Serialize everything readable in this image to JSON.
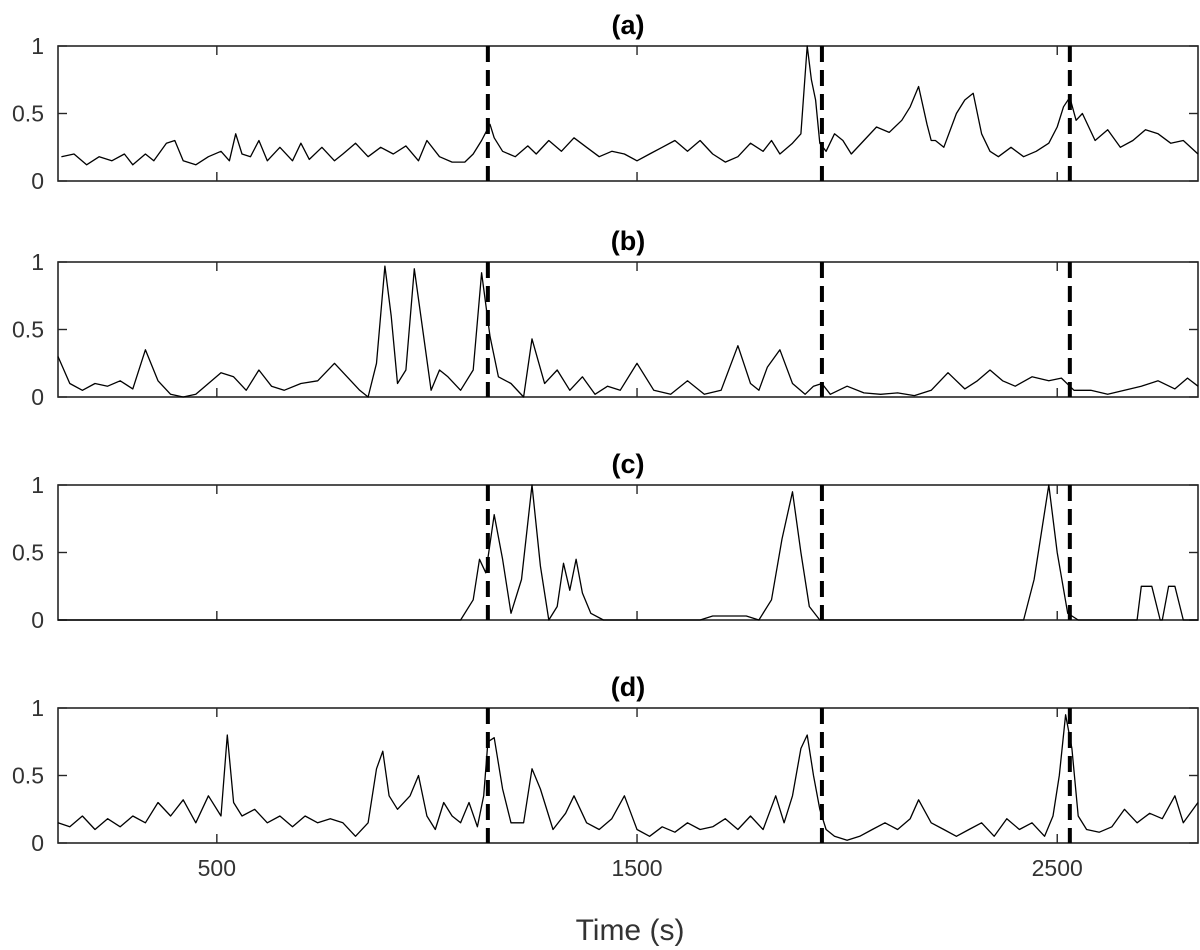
{
  "chart_data": [
    {
      "type": "line",
      "title": "(a)",
      "xlim": [
        122,
        2835
      ],
      "ylim": [
        0,
        1
      ],
      "yticks": [
        0,
        0.5,
        1
      ],
      "ytick_labels": [
        "0",
        "0.5",
        "1"
      ],
      "xticks": [
        500,
        1500,
        2500
      ],
      "xtick_labels": [],
      "xlabel": "",
      "event_lines": [
        1145,
        1940,
        2530
      ],
      "series": [
        {
          "x": [
            130,
            160,
            190,
            220,
            250,
            280,
            300,
            330,
            350,
            380,
            400,
            420,
            450,
            480,
            510,
            530,
            545,
            560,
            580,
            600,
            620,
            650,
            680,
            700,
            720,
            750,
            780,
            800,
            830,
            860,
            890,
            920,
            950,
            980,
            1000,
            1030,
            1060,
            1090,
            1110,
            1130,
            1150,
            1160,
            1180,
            1210,
            1240,
            1260,
            1290,
            1320,
            1350,
            1380,
            1410,
            1440,
            1470,
            1500,
            1530,
            1560,
            1590,
            1620,
            1650,
            1680,
            1710,
            1740,
            1770,
            1800,
            1820,
            1840,
            1870,
            1890,
            1905,
            1915,
            1925,
            1935,
            1950,
            1970,
            1990,
            2010,
            2040,
            2070,
            2100,
            2130,
            2150,
            2170,
            2190,
            2200,
            2210,
            2230,
            2260,
            2280,
            2300,
            2320,
            2340,
            2360,
            2390,
            2420,
            2450,
            2480,
            2500,
            2515,
            2530,
            2545,
            2560,
            2590,
            2620,
            2650,
            2680,
            2710,
            2740,
            2770,
            2800,
            2835
          ],
          "y": [
            0.18,
            0.2,
            0.12,
            0.18,
            0.15,
            0.2,
            0.12,
            0.2,
            0.15,
            0.28,
            0.3,
            0.15,
            0.12,
            0.18,
            0.22,
            0.15,
            0.35,
            0.2,
            0.18,
            0.3,
            0.15,
            0.25,
            0.15,
            0.28,
            0.16,
            0.25,
            0.15,
            0.2,
            0.28,
            0.18,
            0.25,
            0.2,
            0.26,
            0.15,
            0.3,
            0.18,
            0.14,
            0.14,
            0.2,
            0.3,
            0.42,
            0.32,
            0.22,
            0.18,
            0.26,
            0.2,
            0.3,
            0.22,
            0.32,
            0.25,
            0.18,
            0.22,
            0.2,
            0.15,
            0.2,
            0.25,
            0.3,
            0.22,
            0.3,
            0.2,
            0.14,
            0.18,
            0.28,
            0.22,
            0.3,
            0.2,
            0.28,
            0.35,
            1.0,
            0.75,
            0.6,
            0.28,
            0.22,
            0.35,
            0.3,
            0.2,
            0.3,
            0.4,
            0.36,
            0.45,
            0.55,
            0.7,
            0.42,
            0.3,
            0.3,
            0.25,
            0.5,
            0.6,
            0.65,
            0.35,
            0.22,
            0.18,
            0.25,
            0.18,
            0.22,
            0.28,
            0.4,
            0.55,
            0.62,
            0.45,
            0.5,
            0.3,
            0.38,
            0.25,
            0.3,
            0.38,
            0.35,
            0.28,
            0.3,
            0.2
          ]
        }
      ]
    },
    {
      "type": "line",
      "title": "(b)",
      "xlim": [
        122,
        2835
      ],
      "ylim": [
        0,
        1
      ],
      "yticks": [
        0,
        0.5,
        1
      ],
      "ytick_labels": [
        "0",
        "0.5",
        "1"
      ],
      "xticks": [
        500,
        1500,
        2500
      ],
      "xtick_labels": [],
      "xlabel": "",
      "event_lines": [
        1145,
        1940,
        2530
      ],
      "series": [
        {
          "x": [
            122,
            150,
            180,
            210,
            240,
            270,
            300,
            330,
            360,
            390,
            420,
            450,
            480,
            510,
            540,
            570,
            600,
            630,
            660,
            700,
            740,
            780,
            810,
            840,
            860,
            880,
            900,
            915,
            930,
            950,
            970,
            990,
            1010,
            1030,
            1050,
            1080,
            1110,
            1130,
            1150,
            1170,
            1200,
            1230,
            1250,
            1280,
            1310,
            1340,
            1370,
            1400,
            1430,
            1460,
            1500,
            1540,
            1580,
            1620,
            1660,
            1700,
            1740,
            1770,
            1790,
            1810,
            1840,
            1870,
            1900,
            1920,
            1940,
            1960,
            2000,
            2040,
            2080,
            2120,
            2160,
            2200,
            2240,
            2280,
            2310,
            2340,
            2370,
            2400,
            2440,
            2480,
            2510,
            2540,
            2580,
            2620,
            2660,
            2700,
            2740,
            2780,
            2810,
            2835
          ],
          "y": [
            0.3,
            0.1,
            0.05,
            0.1,
            0.08,
            0.12,
            0.06,
            0.35,
            0.12,
            0.02,
            0.0,
            0.02,
            0.1,
            0.18,
            0.15,
            0.05,
            0.2,
            0.08,
            0.05,
            0.1,
            0.12,
            0.25,
            0.15,
            0.05,
            0.0,
            0.25,
            0.97,
            0.6,
            0.1,
            0.2,
            0.95,
            0.5,
            0.05,
            0.2,
            0.15,
            0.05,
            0.2,
            0.92,
            0.45,
            0.15,
            0.1,
            0.0,
            0.43,
            0.1,
            0.2,
            0.05,
            0.15,
            0.02,
            0.08,
            0.05,
            0.25,
            0.05,
            0.02,
            0.12,
            0.02,
            0.05,
            0.38,
            0.1,
            0.05,
            0.22,
            0.35,
            0.1,
            0.02,
            0.08,
            0.1,
            0.02,
            0.08,
            0.03,
            0.02,
            0.03,
            0.01,
            0.05,
            0.18,
            0.06,
            0.12,
            0.2,
            0.12,
            0.08,
            0.15,
            0.12,
            0.14,
            0.05,
            0.05,
            0.02,
            0.05,
            0.08,
            0.12,
            0.06,
            0.14,
            0.08
          ]
        }
      ]
    },
    {
      "type": "line",
      "title": "(c)",
      "xlim": [
        122,
        2835
      ],
      "ylim": [
        0,
        1
      ],
      "yticks": [
        0,
        0.5,
        1
      ],
      "ytick_labels": [
        "0",
        "0.5",
        "1"
      ],
      "xticks": [
        500,
        1500,
        2500
      ],
      "xtick_labels": [],
      "xlabel": "",
      "event_lines": [
        1145,
        1940,
        2530
      ],
      "series": [
        {
          "x": [
            122,
            500,
            540,
            1050,
            1080,
            1110,
            1125,
            1140,
            1160,
            1180,
            1200,
            1225,
            1250,
            1270,
            1290,
            1310,
            1325,
            1340,
            1355,
            1370,
            1390,
            1420,
            1650,
            1680,
            1760,
            1790,
            1820,
            1845,
            1870,
            1890,
            1910,
            1935,
            1960,
            2390,
            2420,
            2445,
            2465,
            2480,
            2500,
            2525,
            2550,
            2670,
            2690,
            2700,
            2725,
            2745,
            2750,
            2765,
            2780,
            2800,
            2835
          ],
          "y": [
            0.0,
            0.0,
            0.0,
            0.0,
            0.0,
            0.15,
            0.45,
            0.35,
            0.78,
            0.45,
            0.05,
            0.3,
            1.0,
            0.4,
            0.0,
            0.1,
            0.42,
            0.22,
            0.45,
            0.2,
            0.05,
            0.0,
            0.0,
            0.03,
            0.03,
            0.0,
            0.15,
            0.6,
            0.95,
            0.5,
            0.1,
            0.0,
            0.0,
            0.0,
            0.0,
            0.3,
            0.7,
            1.0,
            0.5,
            0.05,
            0.0,
            0.0,
            0.0,
            0.25,
            0.25,
            0.0,
            0.0,
            0.25,
            0.25,
            0.0,
            0.0
          ]
        }
      ]
    },
    {
      "type": "line",
      "title": "(d)",
      "xlim": [
        122,
        2835
      ],
      "ylim": [
        0,
        1
      ],
      "yticks": [
        0,
        0.5,
        1
      ],
      "ytick_labels": [
        "0",
        "0.5",
        "1"
      ],
      "xticks": [
        500,
        1500,
        2500
      ],
      "xtick_labels": [
        "500",
        "1500",
        "2500"
      ],
      "xlabel": "Time (s)",
      "event_lines": [
        1145,
        1940,
        2530
      ],
      "series": [
        {
          "x": [
            122,
            150,
            180,
            210,
            240,
            270,
            300,
            330,
            360,
            390,
            420,
            450,
            480,
            510,
            525,
            540,
            560,
            590,
            620,
            650,
            680,
            710,
            740,
            770,
            800,
            830,
            860,
            880,
            895,
            910,
            930,
            960,
            980,
            1000,
            1020,
            1040,
            1060,
            1080,
            1100,
            1120,
            1135,
            1145,
            1160,
            1180,
            1200,
            1230,
            1250,
            1270,
            1300,
            1330,
            1350,
            1380,
            1410,
            1440,
            1470,
            1500,
            1530,
            1560,
            1590,
            1620,
            1650,
            1680,
            1710,
            1740,
            1770,
            1800,
            1830,
            1850,
            1870,
            1890,
            1905,
            1920,
            1935,
            1950,
            1970,
            2000,
            2030,
            2060,
            2090,
            2120,
            2150,
            2170,
            2200,
            2230,
            2260,
            2290,
            2320,
            2350,
            2380,
            2410,
            2440,
            2470,
            2490,
            2505,
            2520,
            2535,
            2550,
            2570,
            2600,
            2630,
            2660,
            2690,
            2720,
            2750,
            2780,
            2800,
            2835
          ],
          "y": [
            0.15,
            0.12,
            0.2,
            0.1,
            0.18,
            0.12,
            0.2,
            0.15,
            0.3,
            0.2,
            0.32,
            0.15,
            0.35,
            0.2,
            0.8,
            0.3,
            0.2,
            0.25,
            0.15,
            0.2,
            0.12,
            0.2,
            0.15,
            0.18,
            0.15,
            0.05,
            0.15,
            0.55,
            0.68,
            0.35,
            0.25,
            0.35,
            0.5,
            0.2,
            0.1,
            0.3,
            0.2,
            0.15,
            0.3,
            0.12,
            0.35,
            0.75,
            0.78,
            0.4,
            0.15,
            0.15,
            0.55,
            0.4,
            0.1,
            0.22,
            0.35,
            0.15,
            0.1,
            0.18,
            0.35,
            0.1,
            0.05,
            0.12,
            0.08,
            0.15,
            0.1,
            0.12,
            0.18,
            0.1,
            0.2,
            0.1,
            0.35,
            0.15,
            0.35,
            0.7,
            0.8,
            0.5,
            0.25,
            0.1,
            0.05,
            0.02,
            0.05,
            0.1,
            0.15,
            0.1,
            0.18,
            0.32,
            0.15,
            0.1,
            0.05,
            0.1,
            0.15,
            0.05,
            0.18,
            0.1,
            0.15,
            0.05,
            0.2,
            0.5,
            0.95,
            0.7,
            0.2,
            0.1,
            0.08,
            0.12,
            0.25,
            0.15,
            0.22,
            0.18,
            0.35,
            0.15,
            0.3
          ]
        }
      ]
    }
  ]
}
